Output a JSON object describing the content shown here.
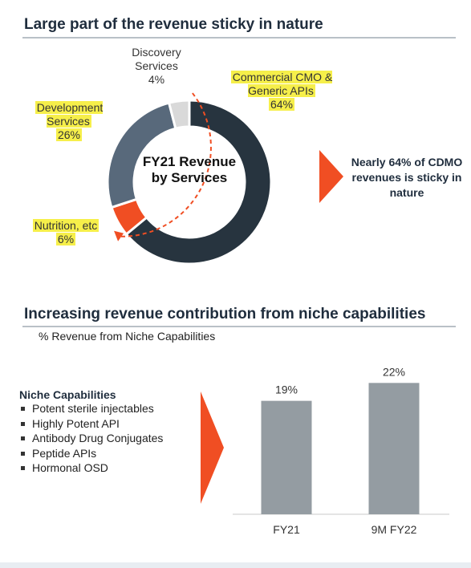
{
  "section1": {
    "heading": "Large part of the revenue sticky in nature"
  },
  "section2": {
    "heading": "Increasing revenue contribution from niche capabilities",
    "subtitle": "% Revenue from Niche Capabilities"
  },
  "colors": {
    "commercial": "#27343f",
    "development": "#58697b",
    "nutrition": "#f04e23",
    "discovery": "#d9d9d9",
    "bars": "#949ca2",
    "accent_arrow": "#f04e23",
    "highlight": "#f6ef4a"
  },
  "callout": {
    "text": "Nearly 64% of CDMO revenues is sticky in nature"
  },
  "niche": {
    "title": "Niche Capabilities",
    "items": [
      "Potent sterile injectables",
      "Highly Potent API",
      "Antibody Drug Conjugates",
      "Peptide APIs",
      "Hormonal OSD"
    ]
  },
  "chart_data": [
    {
      "type": "pie",
      "variant": "donut",
      "center_label": "FY21 Revenue by Services",
      "labels": [
        {
          "name": "Commercial CMO & Generic APIs",
          "pct": "64%"
        },
        {
          "name": "Nutrition, etc",
          "pct": "6%"
        },
        {
          "name": "Development Services",
          "pct": "26%"
        },
        {
          "name": "Discovery Services",
          "pct": "4%"
        }
      ],
      "values": [
        64,
        6,
        26,
        4
      ]
    },
    {
      "type": "bar",
      "categories": [
        "FY21",
        "9M FY22"
      ],
      "values": [
        19,
        22
      ],
      "value_labels": [
        "19%",
        "22%"
      ],
      "ylim": [
        0,
        25
      ],
      "grid": false
    }
  ]
}
